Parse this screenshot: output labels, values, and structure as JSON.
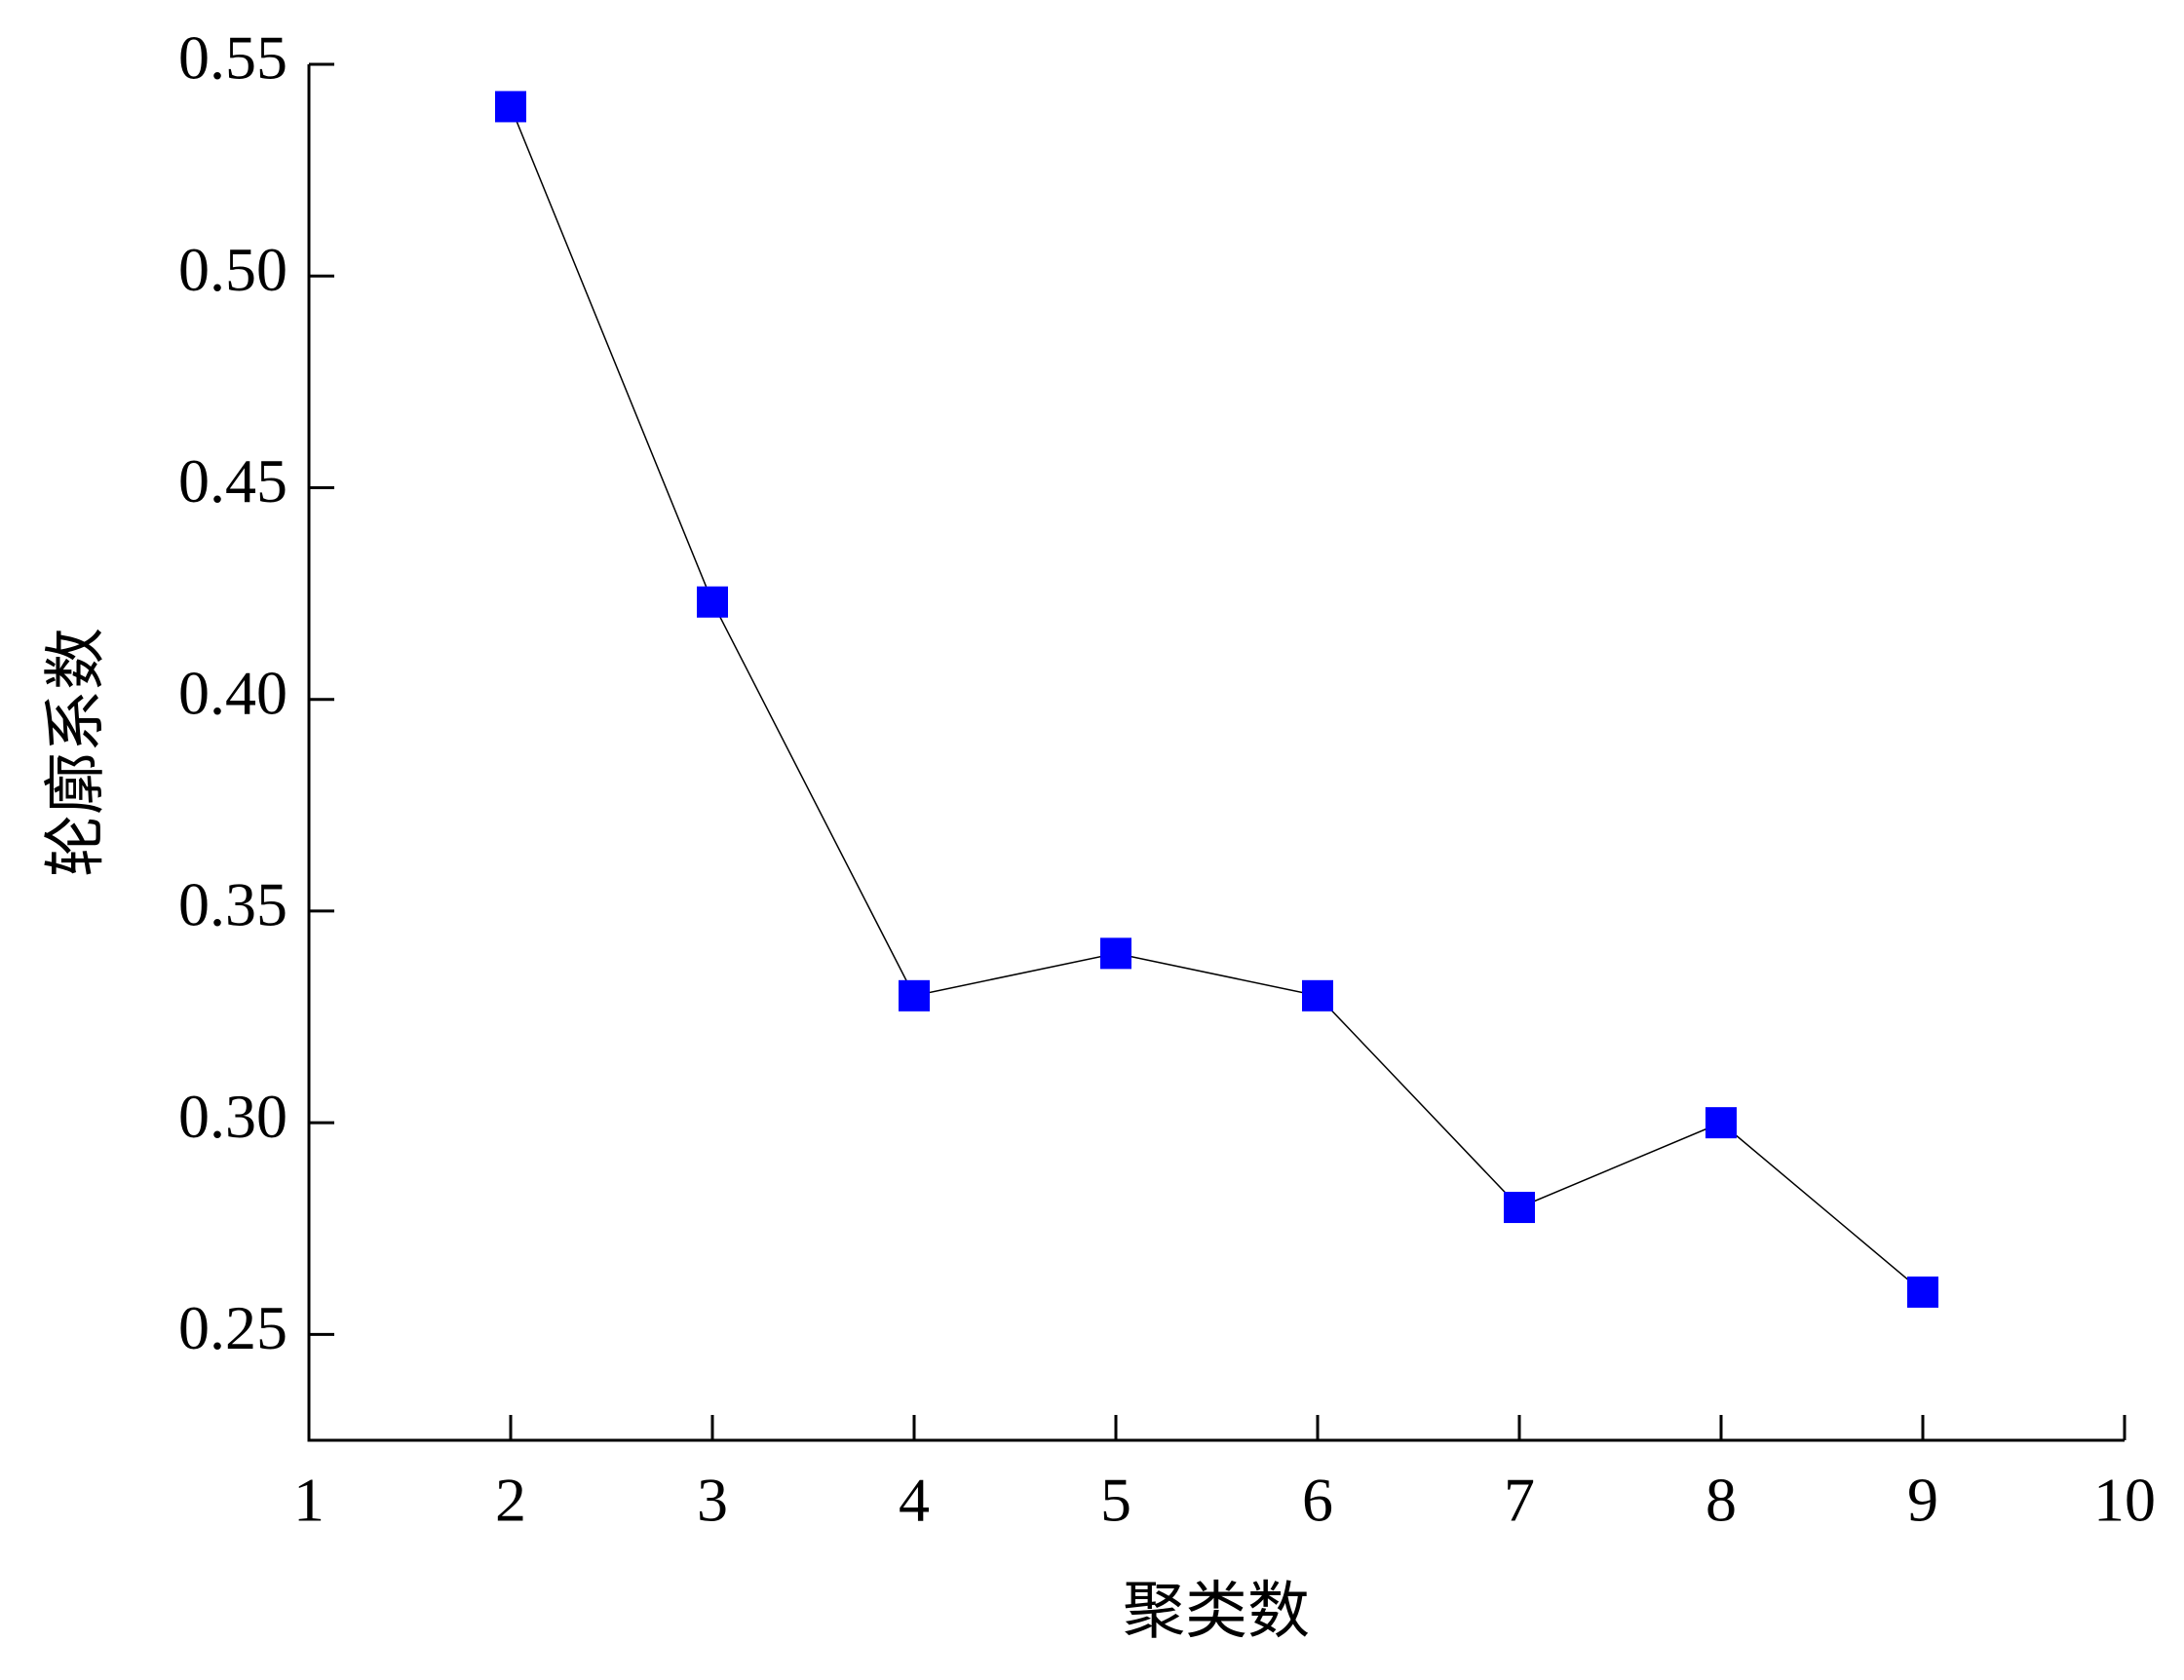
{
  "chart_data": {
    "type": "line",
    "x_label": "聚类数",
    "y_label": "轮廓系数",
    "x": [
      2,
      3,
      4,
      5,
      6,
      7,
      8,
      9
    ],
    "series": [
      {
        "color": "#0000ff",
        "values": [
          0.54,
          0.423,
          0.33,
          0.34,
          0.33,
          0.28,
          0.3,
          0.26
        ]
      }
    ],
    "xlim": [
      1,
      10
    ],
    "xticks": [
      1,
      2,
      3,
      4,
      5,
      6,
      7,
      8,
      9,
      10
    ],
    "ylim": [
      0.225,
      0.55
    ],
    "yticks": [
      0.25,
      {
        "value": 0.3,
        "label": "0.30"
      },
      0.35,
      {
        "value": 0.4,
        "label": "0.40"
      },
      0.45,
      {
        "value": 0.5,
        "label": "0.50"
      },
      0.55
    ],
    "grid": false
  }
}
